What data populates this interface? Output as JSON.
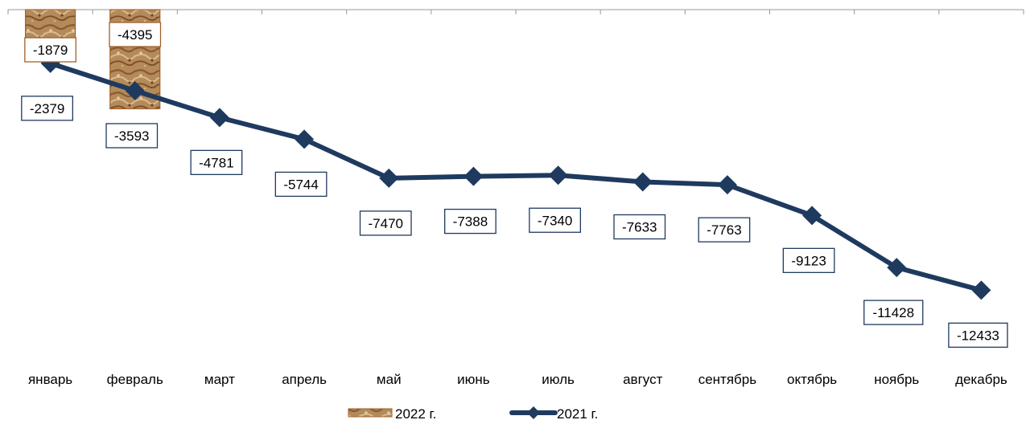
{
  "chart_data": {
    "type": "bar",
    "categories": [
      "январь",
      "февраль",
      "март",
      "апрель",
      "май",
      "июнь",
      "июль",
      "август",
      "сентябрь",
      "октябрь",
      "ноябрь",
      "декабрь"
    ],
    "series": [
      {
        "name": "2022 г.",
        "type": "bar",
        "values": [
          -1879,
          -4395,
          null,
          null,
          null,
          null,
          null,
          null,
          null,
          null,
          null,
          null
        ],
        "labels": [
          "-1879",
          "-4395"
        ],
        "color": "#a0622d"
      },
      {
        "name": "2021 г.",
        "type": "line",
        "values": [
          -2379,
          -3593,
          -4781,
          -5744,
          -7470,
          -7388,
          -7340,
          -7633,
          -7763,
          -9123,
          -11428,
          -12433
        ],
        "labels": [
          "-2379",
          "-3593",
          "-4781",
          "-5744",
          "-7470",
          "-7388",
          "-7340",
          "-7633",
          "-7763",
          "-9123",
          "-11428",
          "-12433"
        ],
        "color": "#1f3a5f"
      }
    ],
    "ylim": [
      -14000,
      0
    ],
    "legend_position": "bottom",
    "grid": false
  }
}
